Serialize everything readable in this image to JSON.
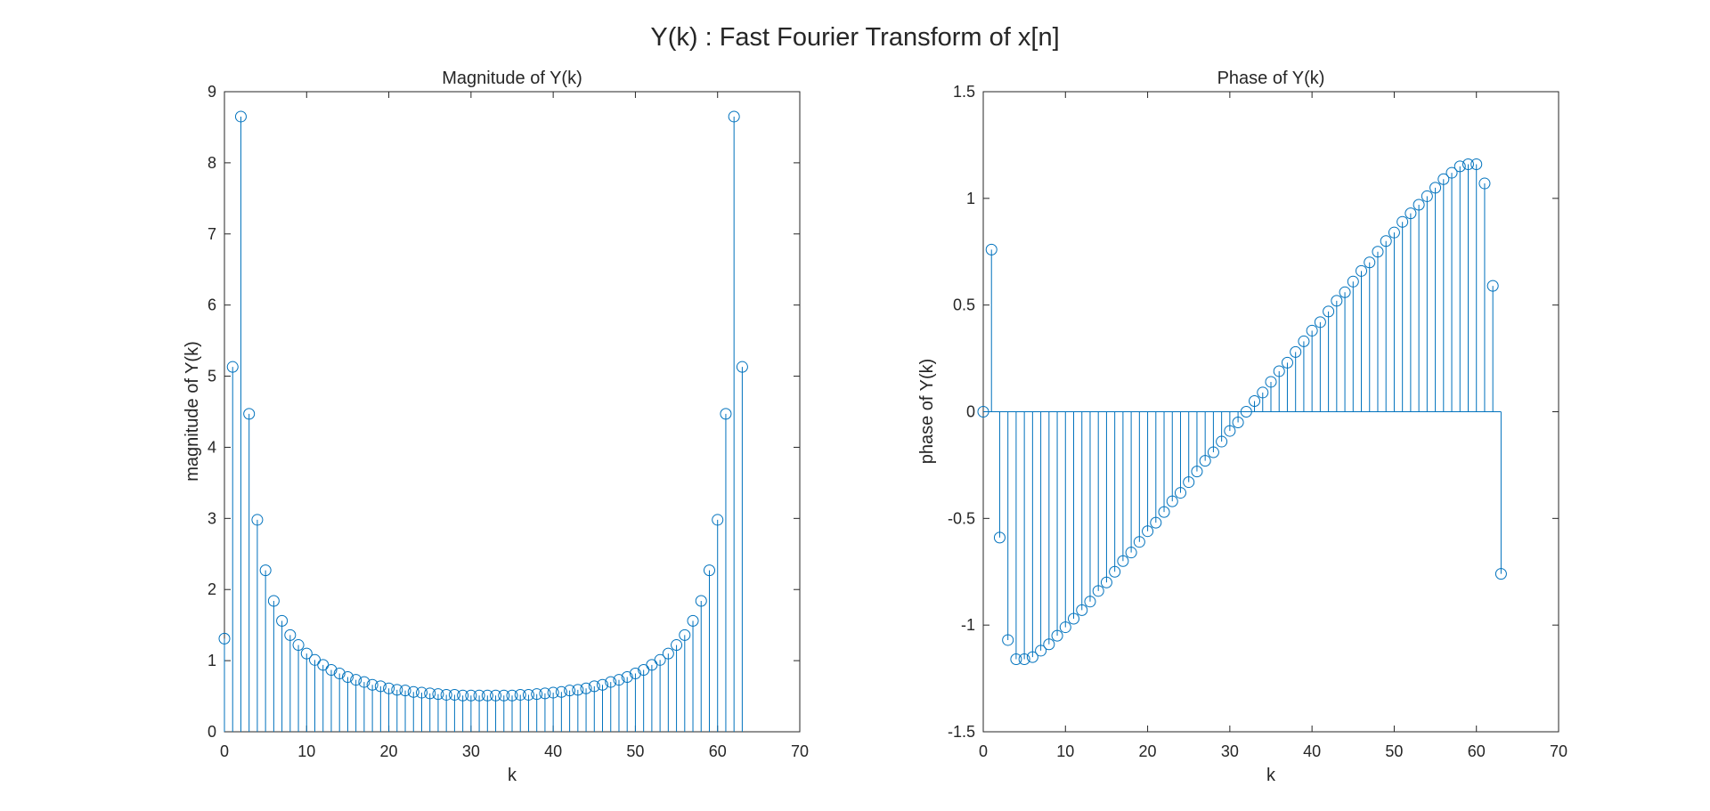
{
  "figure": {
    "title": "Y(k) : Fast Fourier Transform of x[n]",
    "stem_color": "#0072BD",
    "axis_color": "#262626"
  },
  "chart_data": [
    {
      "type": "stem",
      "title": "Magnitude of Y(k)",
      "xlabel": "k",
      "ylabel": "magnitude of Y(k)",
      "xlim": [
        0,
        70
      ],
      "ylim": [
        0,
        9
      ],
      "xticks": [
        0,
        10,
        20,
        30,
        40,
        50,
        60,
        70
      ],
      "yticks": [
        0,
        1,
        2,
        3,
        4,
        5,
        6,
        7,
        8,
        9
      ],
      "grid": false,
      "legend": "none",
      "x": [
        0,
        1,
        2,
        3,
        4,
        5,
        6,
        7,
        8,
        9,
        10,
        11,
        12,
        13,
        14,
        15,
        16,
        17,
        18,
        19,
        20,
        21,
        22,
        23,
        24,
        25,
        26,
        27,
        28,
        29,
        30,
        31,
        32,
        33,
        34,
        35,
        36,
        37,
        38,
        39,
        40,
        41,
        42,
        43,
        44,
        45,
        46,
        47,
        48,
        49,
        50,
        51,
        52,
        53,
        54,
        55,
        56,
        57,
        58,
        59,
        60,
        61,
        62,
        63
      ],
      "values": [
        1.31,
        5.13,
        8.65,
        4.47,
        2.98,
        2.27,
        1.84,
        1.56,
        1.36,
        1.22,
        1.1,
        1.01,
        0.94,
        0.87,
        0.82,
        0.77,
        0.73,
        0.7,
        0.66,
        0.64,
        0.61,
        0.59,
        0.58,
        0.56,
        0.55,
        0.54,
        0.53,
        0.52,
        0.52,
        0.51,
        0.51,
        0.51,
        0.51,
        0.51,
        0.51,
        0.51,
        0.52,
        0.52,
        0.53,
        0.54,
        0.55,
        0.56,
        0.58,
        0.59,
        0.61,
        0.64,
        0.66,
        0.7,
        0.73,
        0.77,
        0.82,
        0.87,
        0.94,
        1.01,
        1.1,
        1.22,
        1.36,
        1.56,
        1.84,
        2.27,
        2.98,
        4.47,
        8.65,
        5.13
      ]
    },
    {
      "type": "stem",
      "title": "Phase of Y(k)",
      "xlabel": "k",
      "ylabel": "phase of Y(k)",
      "xlim": [
        0,
        70
      ],
      "ylim": [
        -1.5,
        1.5
      ],
      "xticks": [
        0,
        10,
        20,
        30,
        40,
        50,
        60,
        70
      ],
      "yticks": [
        -1.5,
        -1,
        -0.5,
        0,
        0.5,
        1,
        1.5
      ],
      "grid": false,
      "legend": "none",
      "x": [
        0,
        1,
        2,
        3,
        4,
        5,
        6,
        7,
        8,
        9,
        10,
        11,
        12,
        13,
        14,
        15,
        16,
        17,
        18,
        19,
        20,
        21,
        22,
        23,
        24,
        25,
        26,
        27,
        28,
        29,
        30,
        31,
        32,
        33,
        34,
        35,
        36,
        37,
        38,
        39,
        40,
        41,
        42,
        43,
        44,
        45,
        46,
        47,
        48,
        49,
        50,
        51,
        52,
        53,
        54,
        55,
        56,
        57,
        58,
        59,
        60,
        61,
        62,
        63
      ],
      "values": [
        0,
        0.76,
        -0.59,
        -1.07,
        -1.16,
        -1.16,
        -1.15,
        -1.12,
        -1.09,
        -1.05,
        -1.01,
        -0.97,
        -0.93,
        -0.89,
        -0.84,
        -0.8,
        -0.75,
        -0.7,
        -0.66,
        -0.61,
        -0.56,
        -0.52,
        -0.47,
        -0.42,
        -0.38,
        -0.33,
        -0.28,
        -0.23,
        -0.19,
        -0.14,
        -0.09,
        -0.05,
        0,
        0.05,
        0.09,
        0.14,
        0.19,
        0.23,
        0.28,
        0.33,
        0.38,
        0.42,
        0.47,
        0.52,
        0.56,
        0.61,
        0.66,
        0.7,
        0.75,
        0.8,
        0.84,
        0.89,
        0.93,
        0.97,
        1.01,
        1.05,
        1.09,
        1.12,
        1.15,
        1.16,
        1.16,
        1.07,
        0.59,
        -0.76
      ]
    }
  ]
}
